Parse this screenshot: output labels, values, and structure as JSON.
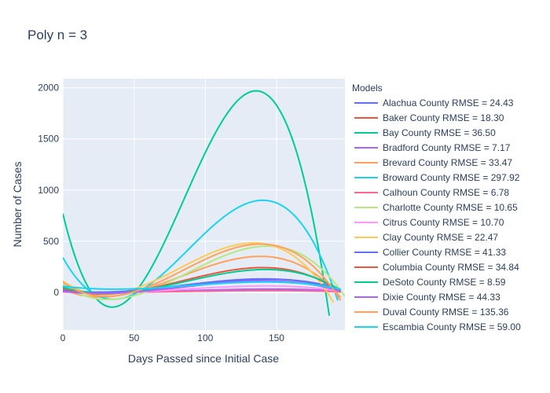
{
  "chart_data": {
    "type": "line",
    "title": "Poly n = 3",
    "xlabel": "Days Passed since Initial Case",
    "ylabel": "Number of Cases",
    "xlim": [
      0,
      198
    ],
    "ylim": [
      -370,
      2090
    ],
    "x_ticks": [
      0,
      50,
      100,
      150
    ],
    "y_ticks": [
      0,
      500,
      1000,
      1500,
      2000
    ],
    "grid": true,
    "legend_title": "Models",
    "legend_position": "right",
    "series": [
      {
        "name": "Alachua County RMSE = 24.43",
        "color": "#636efa",
        "x_range": [
          0,
          195
        ],
        "points": [
          [
            0,
            35
          ],
          [
            60,
            15
          ],
          [
            130,
            120
          ],
          [
            195,
            30
          ]
        ]
      },
      {
        "name": "Baker County RMSE = 18.30",
        "color": "#EF553B",
        "x_range": [
          0,
          195
        ],
        "points": [
          [
            0,
            5
          ],
          [
            60,
            5
          ],
          [
            130,
            25
          ],
          [
            195,
            5
          ]
        ]
      },
      {
        "name": "Bay County RMSE = 36.50",
        "color": "#00cc96",
        "x_range": [
          0,
          187
        ],
        "points": [
          [
            0,
            770
          ],
          [
            35,
            -145
          ],
          [
            135,
            1970
          ],
          [
            187,
            -230
          ]
        ]
      },
      {
        "name": "Bradford County RMSE = 7.17",
        "color": "#ab63fa",
        "x_range": [
          0,
          195
        ],
        "points": [
          [
            0,
            5
          ],
          [
            60,
            5
          ],
          [
            130,
            30
          ],
          [
            195,
            10
          ]
        ]
      },
      {
        "name": "Brevard County RMSE = 33.47",
        "color": "#FFA15A",
        "x_range": [
          0,
          195
        ],
        "points": [
          [
            0,
            30
          ],
          [
            60,
            40
          ],
          [
            135,
            350
          ],
          [
            195,
            -50
          ]
        ]
      },
      {
        "name": "Broward County RMSE = 297.92",
        "color": "#19d3f3",
        "x_range": [
          0,
          193
        ],
        "points": [
          [
            0,
            340
          ],
          [
            30,
            -60
          ],
          [
            140,
            900
          ],
          [
            193,
            -80
          ]
        ]
      },
      {
        "name": "Calhoun County RMSE = 6.78",
        "color": "#FF6692",
        "x_range": [
          0,
          195
        ],
        "points": [
          [
            0,
            3
          ],
          [
            60,
            3
          ],
          [
            130,
            15
          ],
          [
            195,
            5
          ]
        ]
      },
      {
        "name": "Charlotte County RMSE = 10.65",
        "color": "#B6E880",
        "x_range": [
          0,
          198
        ],
        "points": [
          [
            0,
            80
          ],
          [
            30,
            -70
          ],
          [
            140,
            450
          ],
          [
            198,
            -40
          ]
        ]
      },
      {
        "name": "Citrus County RMSE = 10.70",
        "color": "#FF97FF",
        "x_range": [
          0,
          195
        ],
        "points": [
          [
            0,
            10
          ],
          [
            60,
            10
          ],
          [
            130,
            60
          ],
          [
            195,
            10
          ]
        ]
      },
      {
        "name": "Clay County RMSE = 22.47",
        "color": "#FECB52",
        "x_range": [
          0,
          190
        ],
        "points": [
          [
            0,
            110
          ],
          [
            25,
            -20
          ],
          [
            130,
            480
          ],
          [
            190,
            -100
          ]
        ]
      },
      {
        "name": "Collier County RMSE = 41.33",
        "color": "#636efa",
        "x_range": [
          0,
          195
        ],
        "points": [
          [
            0,
            20
          ],
          [
            60,
            30
          ],
          [
            135,
            130
          ],
          [
            195,
            20
          ]
        ]
      },
      {
        "name": "Columbia County RMSE = 34.84",
        "color": "#EF553B",
        "x_range": [
          0,
          195
        ],
        "points": [
          [
            0,
            40
          ],
          [
            60,
            35
          ],
          [
            135,
            240
          ],
          [
            195,
            0
          ]
        ]
      },
      {
        "name": "DeSoto County RMSE = 8.59",
        "color": "#00cc96",
        "x_range": [
          0,
          195
        ],
        "points": [
          [
            0,
            50
          ],
          [
            60,
            30
          ],
          [
            135,
            220
          ],
          [
            195,
            20
          ]
        ]
      },
      {
        "name": "Dixie County RMSE = 44.33",
        "color": "#ab63fa",
        "x_range": [
          0,
          195
        ],
        "points": [
          [
            0,
            10
          ],
          [
            60,
            15
          ],
          [
            135,
            110
          ],
          [
            195,
            10
          ]
        ]
      },
      {
        "name": "Duval County RMSE = 135.36",
        "color": "#FFA15A",
        "x_range": [
          0,
          195
        ],
        "points": [
          [
            0,
            100
          ],
          [
            30,
            -40
          ],
          [
            135,
            470
          ],
          [
            195,
            -80
          ]
        ]
      },
      {
        "name": "Escambia County RMSE = 59.00",
        "color": "#19d3f3",
        "x_range": [
          0,
          195
        ],
        "points": [
          [
            0,
            60
          ],
          [
            60,
            40
          ],
          [
            135,
            100
          ],
          [
            195,
            30
          ]
        ]
      }
    ]
  }
}
